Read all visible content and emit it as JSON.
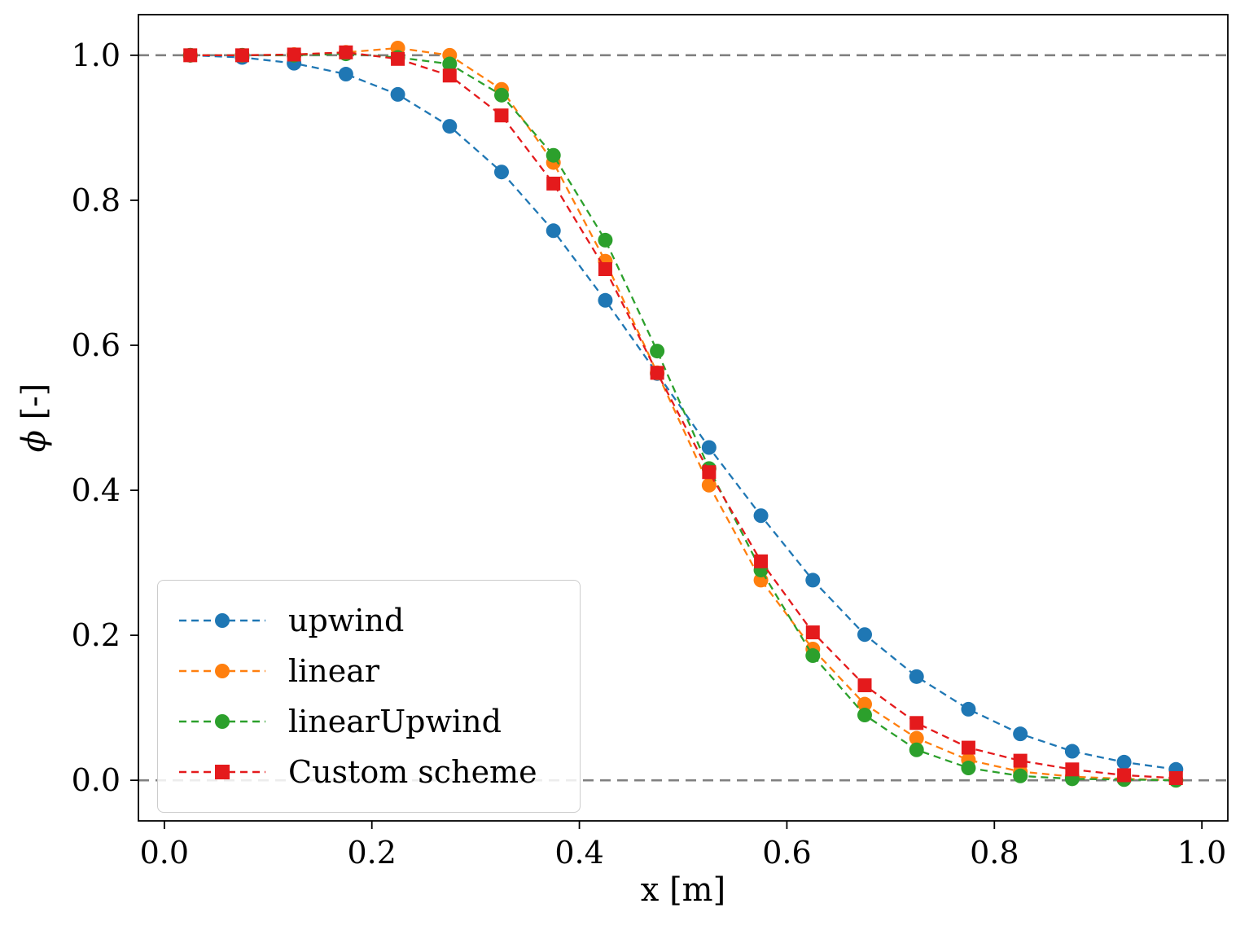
{
  "figure": {
    "background": "#ffffff",
    "xlabel": "x [m]",
    "ylabel_symbol": "ϕ",
    "ylabel_unit": " [-]"
  },
  "chart_data": {
    "type": "line",
    "title": "",
    "xlabel": "x [m]",
    "ylabel": "phi [-]",
    "xlim": [
      -0.025,
      1.025
    ],
    "ylim": [
      -0.056,
      1.056
    ],
    "x_ticks": [
      0.0,
      0.2,
      0.4,
      0.6,
      0.8,
      1.0
    ],
    "y_ticks": [
      0.0,
      0.2,
      0.4,
      0.6,
      0.8,
      1.0
    ],
    "grid": false,
    "legend_position": "lower left",
    "reference_lines": [
      {
        "y": 1.0,
        "color": "#808080",
        "style": "dashed"
      },
      {
        "y": 0.0,
        "color": "#808080",
        "style": "dashed"
      }
    ],
    "x": [
      0.025,
      0.075,
      0.125,
      0.175,
      0.225,
      0.275,
      0.325,
      0.375,
      0.425,
      0.475,
      0.525,
      0.575,
      0.625,
      0.675,
      0.725,
      0.775,
      0.825,
      0.875,
      0.925,
      0.975
    ],
    "series": [
      {
        "name": "upwind",
        "color": "#1f77b4",
        "marker": "circle",
        "linestyle": "dashed",
        "values": [
          1.0,
          0.997,
          0.989,
          0.974,
          0.946,
          0.902,
          0.839,
          0.758,
          0.662,
          0.561,
          0.459,
          0.365,
          0.276,
          0.201,
          0.143,
          0.098,
          0.064,
          0.04,
          0.025,
          0.015
        ]
      },
      {
        "name": "linear",
        "color": "#ff7f0e",
        "marker": "circle",
        "linestyle": "dashed",
        "values": [
          1.0,
          1.0,
          1.001,
          1.004,
          1.01,
          1.0,
          0.953,
          0.852,
          0.716,
          0.562,
          0.407,
          0.276,
          0.181,
          0.105,
          0.058,
          0.028,
          0.012,
          0.005,
          0.002,
          0.0
        ]
      },
      {
        "name": "linearUpwind",
        "color": "#2ca02c",
        "marker": "circle",
        "linestyle": "dashed",
        "values": [
          1.0,
          1.0,
          1.0,
          1.002,
          0.997,
          0.988,
          0.945,
          0.862,
          0.745,
          0.592,
          0.43,
          0.29,
          0.172,
          0.09,
          0.042,
          0.017,
          0.006,
          0.002,
          0.001,
          0.0
        ]
      },
      {
        "name": "Custom scheme",
        "color": "#e41a1c",
        "marker": "square",
        "linestyle": "dashed",
        "values": [
          1.0,
          1.0,
          1.001,
          1.004,
          0.995,
          0.972,
          0.917,
          0.823,
          0.705,
          0.562,
          0.425,
          0.302,
          0.204,
          0.131,
          0.079,
          0.045,
          0.027,
          0.015,
          0.007,
          0.003
        ]
      }
    ]
  }
}
